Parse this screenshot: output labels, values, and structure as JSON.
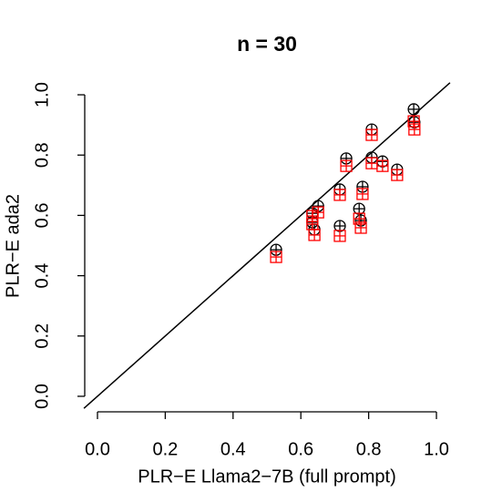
{
  "chart_data": {
    "type": "scatter",
    "title": "n = 30",
    "x_label": "PLR−E Llama2−7B (full prompt)",
    "y_label": "PLR−E ada2",
    "xlim": [
      -0.04,
      1.04
    ],
    "ylim": [
      -0.04,
      1.04
    ],
    "xticks": [
      {
        "value": 0,
        "label": "0.0"
      },
      {
        "value": 0.2,
        "label": "0.2"
      },
      {
        "value": 0.4,
        "label": "0.4"
      },
      {
        "value": 0.6,
        "label": "0.6"
      },
      {
        "value": 0.8,
        "label": "0.8"
      },
      {
        "value": 1,
        "label": "1.0"
      }
    ],
    "yticks": [
      {
        "value": 0,
        "label": "0.0"
      },
      {
        "value": 0.2,
        "label": "0.2"
      },
      {
        "value": 0.4,
        "label": "0.4"
      },
      {
        "value": 0.6,
        "label": "0.6"
      },
      {
        "value": 0.8,
        "label": "0.8"
      },
      {
        "value": 1,
        "label": "1.0"
      }
    ],
    "reference_line": {
      "intercept": 0,
      "slope": 1,
      "color": "#000000"
    },
    "series": [
      {
        "color": "#000000",
        "marker": "circle-plus",
        "x": [
          0.527,
          0.634,
          0.634,
          0.64,
          0.651,
          0.715,
          0.715,
          0.734,
          0.772,
          0.782,
          0.777,
          0.809,
          0.809,
          0.841,
          0.884,
          0.933,
          0.935
        ],
        "values": [
          0.486,
          0.607,
          0.577,
          0.553,
          0.631,
          0.686,
          0.565,
          0.789,
          0.622,
          0.695,
          0.583,
          0.885,
          0.792,
          0.779,
          0.752,
          0.952,
          0.909
        ]
      },
      {
        "color": "#ff0000",
        "marker": "square-plus",
        "x": [
          0.527,
          0.634,
          0.634,
          0.64,
          0.651,
          0.715,
          0.715,
          0.734,
          0.772,
          0.782,
          0.777,
          0.809,
          0.809,
          0.841,
          0.884,
          0.933,
          0.935
        ],
        "values": [
          0.462,
          0.598,
          0.571,
          0.535,
          0.61,
          0.668,
          0.532,
          0.764,
          0.589,
          0.671,
          0.559,
          0.867,
          0.773,
          0.764,
          0.734,
          0.912,
          0.885
        ]
      }
    ]
  }
}
